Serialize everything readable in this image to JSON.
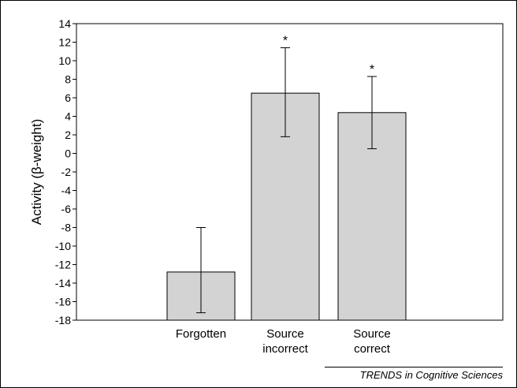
{
  "chart_data": {
    "type": "bar",
    "categories": [
      [
        "Forgotten"
      ],
      [
        "Source",
        "incorrect"
      ],
      [
        "Source",
        "correct"
      ]
    ],
    "values": [
      -12.8,
      6.5,
      4.4
    ],
    "error_upper": [
      -8.0,
      11.4,
      8.3
    ],
    "error_lower": [
      -17.2,
      1.8,
      0.5
    ],
    "significance": [
      "",
      "*",
      "*"
    ],
    "ylabel": "Activity (β-weight)",
    "ylim": [
      -18,
      14
    ],
    "yticks": [
      14,
      12,
      10,
      8,
      6,
      4,
      2,
      0,
      -2,
      -4,
      -6,
      -8,
      -10,
      -12,
      -14,
      -16,
      -18
    ],
    "bar_color": "#d3d3d3",
    "grid": false
  },
  "credit": "TRENDS in Cognitive Sciences"
}
